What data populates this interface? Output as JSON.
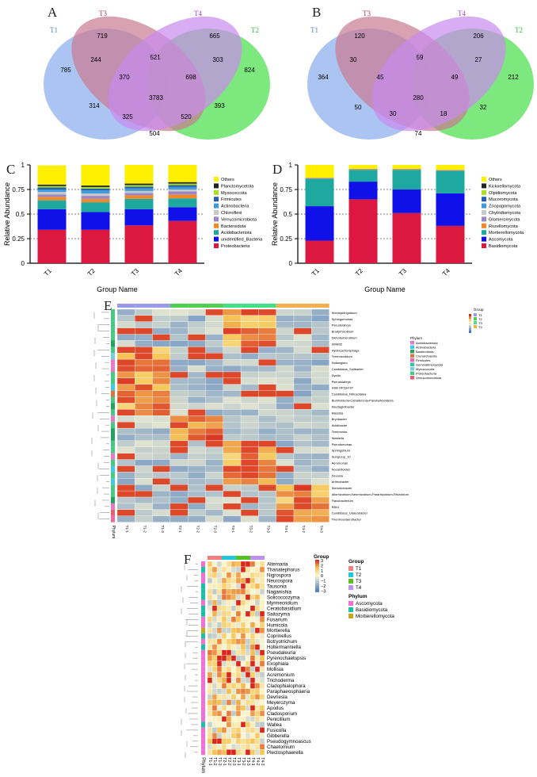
{
  "panels": {
    "a": "A",
    "b": "B",
    "c": "C",
    "d": "D",
    "e": "E",
    "f": "F"
  },
  "venn_a": {
    "sets": [
      "T1",
      "T3",
      "T4",
      "T2"
    ],
    "colors": [
      "#8fb0ec",
      "#c97a92",
      "#c98af0",
      "#52e052"
    ],
    "regions": {
      "t1": "785",
      "t3": "719",
      "t4": "665",
      "t2": "824",
      "t1t3": "244",
      "t3t4": "521",
      "t4t2": "303",
      "t1t4": "314",
      "t3t2": "393",
      "t1t3t4": "370",
      "t3t4t2": "698",
      "all": "3783",
      "t1t2": "504",
      "t1t3t2": "325",
      "t1t4t2": "520"
    }
  },
  "venn_b": {
    "sets": [
      "T1",
      "T3",
      "T4",
      "T2"
    ],
    "regions": {
      "t1": "364",
      "t3": "120",
      "t4": "206",
      "t2": "212",
      "t1t3": "30",
      "t3t4": "59",
      "t4t2": "27",
      "t1t4": "50",
      "t3t2": "32",
      "t1t3t4": "45",
      "t3t4t2": "49",
      "all": "280",
      "t1t2": "74",
      "t1t3t2": "30",
      "t1t4t2": "18"
    }
  },
  "chart_data": [
    {
      "type": "bar",
      "title": "",
      "ylabel": "Relative Abundance",
      "xlabel": "Group Name",
      "ylim": [
        0,
        1
      ],
      "yticks": [
        "0",
        "0.25",
        "0.5",
        "0.75",
        "1"
      ],
      "categories": [
        "T1",
        "T2",
        "T3",
        "T4"
      ],
      "legend": [
        "Others",
        "Planctomycetota",
        "Myxococcota",
        "Firmicutes",
        "Actinobacteria",
        "Chloroflexi",
        "Verrucomicrobiota",
        "Bacteroidota",
        "Acidobacteriota",
        "unidentified_Bacteria",
        "Proteobacteria"
      ],
      "colors": [
        "#ffef00",
        "#222222",
        "#a8e020",
        "#2860a8",
        "#3e9ad8",
        "#c8c8c8",
        "#9a86c8",
        "#f08a28",
        "#1fa8a0",
        "#1010e8",
        "#dc1840"
      ],
      "series": [
        {
          "name": "Proteobacteria",
          "values": [
            0.34,
            0.34,
            0.385,
            0.43
          ]
        },
        {
          "name": "unidentified_Bacteria",
          "values": [
            0.21,
            0.18,
            0.165,
            0.14
          ]
        },
        {
          "name": "Acidobacteriota",
          "values": [
            0.09,
            0.1,
            0.105,
            0.09
          ]
        },
        {
          "name": "Bacteroidota",
          "values": [
            0.035,
            0.035,
            0.035,
            0.04
          ]
        },
        {
          "name": "Verrucomicrobiota",
          "values": [
            0.025,
            0.03,
            0.025,
            0.03
          ]
        },
        {
          "name": "Chloroflexi",
          "values": [
            0.025,
            0.025,
            0.02,
            0.02
          ]
        },
        {
          "name": "Actinobacteria",
          "values": [
            0.025,
            0.03,
            0.025,
            0.025
          ]
        },
        {
          "name": "Firmicutes",
          "values": [
            0.02,
            0.02,
            0.02,
            0.02
          ]
        },
        {
          "name": "Myxococcota",
          "values": [
            0.015,
            0.015,
            0.015,
            0.015
          ]
        },
        {
          "name": "Planctomycetota",
          "values": [
            0.015,
            0.015,
            0.015,
            0.015
          ]
        },
        {
          "name": "Others",
          "values": [
            0.195,
            0.21,
            0.19,
            0.175
          ]
        }
      ]
    },
    {
      "type": "bar",
      "title": "",
      "ylabel": "Relative Abundance",
      "xlabel": "Group Name",
      "ylim": [
        0,
        1
      ],
      "yticks": [
        "0",
        "0.25",
        "0.5",
        "0.75",
        "1"
      ],
      "categories": [
        "T1",
        "T2",
        "T3",
        "T4"
      ],
      "legend": [
        "Others",
        "Kickxellomycota",
        "Olpidiomycota",
        "Mucoromycota",
        "Zoopagomycota",
        "Chytridiomycota",
        "Glomeromycota",
        "Rozellomycota",
        "Mortierellomycota",
        "Ascomycota",
        "Basidiomycota"
      ],
      "colors": [
        "#ffef00",
        "#222222",
        "#a8e020",
        "#2860a8",
        "#3e9ad8",
        "#c8c8c8",
        "#9a86c8",
        "#f08a28",
        "#1fa8a0",
        "#1010e8",
        "#dc1840"
      ],
      "series": [
        {
          "name": "Basidiomycota",
          "values": [
            0.23,
            0.65,
            0.51,
            0.38
          ]
        },
        {
          "name": "Ascomycota",
          "values": [
            0.35,
            0.18,
            0.24,
            0.33
          ]
        },
        {
          "name": "Mortierellomycota",
          "values": [
            0.28,
            0.12,
            0.2,
            0.23
          ]
        },
        {
          "name": "Rozellomycota",
          "values": [
            0.005,
            0.005,
            0.005,
            0.005
          ]
        },
        {
          "name": "Glomeromycota",
          "values": [
            0.005,
            0.005,
            0.005,
            0.005
          ]
        },
        {
          "name": "Others",
          "values": [
            0.13,
            0.04,
            0.04,
            0.05
          ]
        }
      ]
    }
  ],
  "heatmap_e": {
    "legend_title_group": "Group",
    "legend_title_phylum": "Phylum",
    "groups": [
      "T1",
      "T2",
      "T3",
      "T4"
    ],
    "group_colors": [
      "#9a9ae8",
      "#52cc52",
      "#44dd88",
      "#f0b050"
    ],
    "phyla": [
      "Acidobacteriota",
      "Actinobacteria",
      "Bacteroidota",
      "Crenarchaeota",
      "Firmicutes",
      "Gemmatimonadota",
      "Myxococcota",
      "Proteobacteria",
      "Verrucomicrobiota"
    ],
    "phylum_colors": [
      "#e878c8",
      "#40c8e8",
      "#28a060",
      "#d87840",
      "#f068a0",
      "#30c0b0",
      "#70d0e0",
      "#48c880",
      "#e86070"
    ],
    "rows": [
      "Novosphingobium",
      "Sphingomonas",
      "Pseudolabrys",
      "Bradyrhizobium",
      "Dichotomicrobium",
      "SWB02",
      "Hydrocarboniphaga",
      "Terrimicrobium",
      "Haliangium",
      "Candidatus_Solibacter",
      "Dyella",
      "Pseudolabrys",
      "HSB OF53-F07",
      "Candidatus_Nitrosotalea",
      "Burkholderia-Caballeronia-Paraburkholderia",
      "Mucilaginibacter",
      "Massilia",
      "Bryobacter",
      "Acidibacter",
      "Terrimonas",
      "Niastella",
      "Pseudomonas",
      "Sphingobium",
      "Subgroup_10",
      "Aeromonas",
      "Nocardioides",
      "Devosia",
      "Arthrobacter",
      "Steroidobacter",
      "Allorhizobium-Neorhizobium-Pararhizobium-Rhizobium",
      "Flavobacterium",
      "RB41",
      "Candidatus_Udaeobacter",
      "Thermoanaerobacter"
    ],
    "cols": [
      "T1-1",
      "T1-2",
      "T1-3",
      "T2-1",
      "T2-2",
      "T2-3",
      "T3-1",
      "T3-2",
      "T3-3",
      "T4-1",
      "T4-2",
      "T4-3"
    ],
    "phylum_label": "Phylum"
  },
  "heatmap_f": {
    "legend_title_group": "Group",
    "legend_title_phylum": "Phylum",
    "groups": [
      "T1",
      "T2",
      "T3",
      "T4"
    ],
    "group_colors": [
      "#f08080",
      "#20c8d8",
      "#58c020",
      "#c090f0"
    ],
    "phyla": [
      "Ascomycota",
      "Basidiomycota",
      "Mortierellomycota"
    ],
    "phylum_colors": [
      "#f070d8",
      "#18c0a8",
      "#c8a818"
    ],
    "scale_ticks": [
      "3",
      "2",
      "1",
      "0",
      "−1",
      "−2",
      "−3"
    ],
    "rows": [
      "Alternaria",
      "Thanatephorus",
      "Nigrospora",
      "Neurospora",
      "Tausonia",
      "Naganishia",
      "Solicoccozyma",
      "Myrmecridium",
      "Ceratobasidium",
      "Saitozyma",
      "Fusarium",
      "Humicola",
      "Mortierella",
      "Coprinellus",
      "Botryotrichum",
      "Holtermanniella",
      "Pseudaleuria",
      "Pyrenochaetopsis",
      "Exophiala",
      "Mollisia",
      "Acremonium",
      "Trichoderma",
      "Cladophialophora",
      "Paraphaeosphaeria",
      "Devriesia",
      "Meyerozyma",
      "Apodus",
      "Cladosporium",
      "Penicillium",
      "Wallea",
      "Fusicolla",
      "Gibberella",
      "Pseudogymnoascus",
      "Chaetomium",
      "Plectosphaerella"
    ],
    "cols": [
      "T1-1",
      "T1-2",
      "T1-3",
      "T2-1",
      "T2-2",
      "T2-3",
      "T3-1",
      "T3-2",
      "T3-3",
      "T4-1",
      "T4-2",
      "T4-3"
    ],
    "phylum_label": "Phylum"
  }
}
